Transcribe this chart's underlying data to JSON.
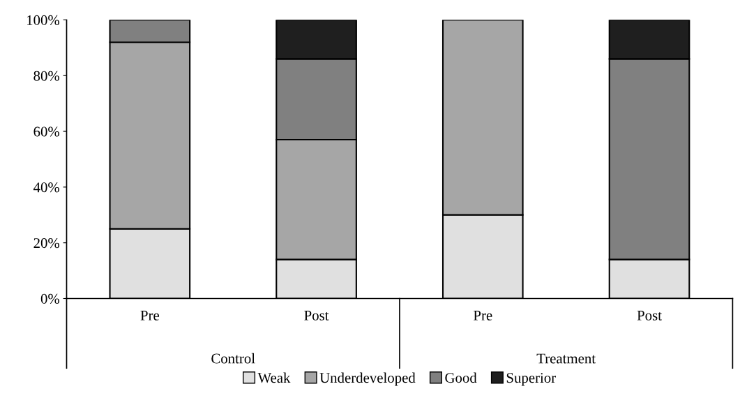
{
  "chart_data": {
    "type": "bar",
    "stacked": true,
    "categories": [
      "Pre",
      "Post",
      "Pre",
      "Post"
    ],
    "annotations": [
      "Control",
      "Treatment"
    ],
    "series": [
      {
        "name": "Weak",
        "color": "#e0e0e0",
        "values": [
          25,
          14,
          30,
          14
        ]
      },
      {
        "name": "Underdeveloped",
        "color": "#a6a6a6",
        "values": [
          67,
          43,
          70,
          0
        ]
      },
      {
        "name": "Good",
        "color": "#808080",
        "values": [
          8,
          29,
          0,
          72
        ]
      },
      {
        "name": "Superior",
        "color": "#1f1f1f",
        "values": [
          0,
          14,
          0,
          14
        ]
      }
    ],
    "ylim": [
      0,
      100
    ],
    "yticks": [
      {
        "value": 0,
        "label": "0%"
      },
      {
        "value": 20,
        "label": "20%"
      },
      {
        "value": 40,
        "label": "40%"
      },
      {
        "value": 60,
        "label": "60%"
      },
      {
        "value": 80,
        "label": "80%"
      },
      {
        "value": 100,
        "label": "100%"
      }
    ],
    "grid": false,
    "legend": "bottom"
  }
}
